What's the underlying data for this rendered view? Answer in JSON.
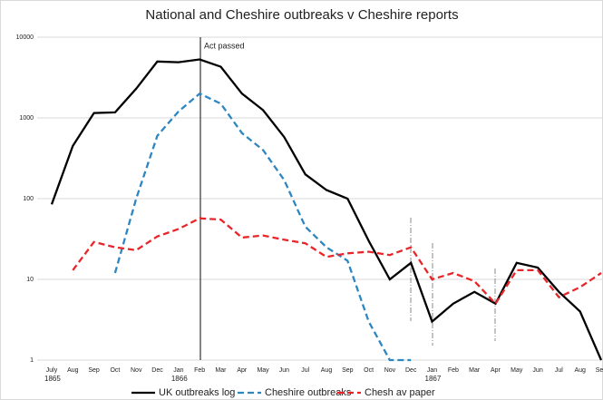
{
  "chart_data": {
    "type": "line",
    "title": "National and Cheshire outbreaks v Cheshire reports",
    "annotation": "Act passed",
    "categories": [
      "July",
      "Aug",
      "Sep",
      "Oct",
      "Nov",
      "Dec",
      "Jan",
      "Feb",
      "Mar",
      "Apr",
      "May",
      "Jun",
      "Jul",
      "Aug",
      "Sep",
      "Oct",
      "Nov",
      "Dec",
      "Jan",
      "Feb",
      "Mar",
      "Apr",
      "May",
      "Jun",
      "Jul",
      "Aug",
      "Sep"
    ],
    "years": [
      "1865",
      null,
      null,
      null,
      null,
      null,
      "1866",
      null,
      null,
      null,
      null,
      null,
      null,
      null,
      null,
      null,
      null,
      null,
      "1867",
      null,
      null,
      null,
      null,
      null,
      null,
      null,
      null
    ],
    "log_scale": true,
    "grid": true,
    "legend": "bottom",
    "ylim": [
      1,
      10000
    ],
    "yticks": [
      1,
      10,
      100,
      1000,
      10000
    ],
    "series": [
      {
        "name": "UK outbreaks log",
        "color": "#000000",
        "dash": "solid",
        "values": [
          85,
          450,
          1150,
          1170,
          2300,
          5000,
          4900,
          5300,
          4300,
          2000,
          1250,
          580,
          200,
          128,
          100,
          30,
          10,
          16,
          3,
          5,
          7,
          5,
          16,
          14,
          7,
          4,
          1
        ]
      },
      {
        "name": "Cheshire outbreaks",
        "color": "#2e86c1",
        "dash": "dashed",
        "values": [
          null,
          null,
          null,
          12,
          100,
          600,
          1200,
          2000,
          1500,
          650,
          400,
          170,
          45,
          25,
          17,
          3,
          1,
          1,
          null,
          null,
          null,
          null,
          null,
          null,
          null,
          null,
          null
        ]
      },
      {
        "name": "Chesh av paper",
        "color": "#e8262a",
        "dash": "dashed",
        "values": [
          null,
          13,
          29,
          25,
          23,
          34,
          42,
          57,
          55,
          33,
          35,
          31,
          28,
          19,
          21,
          22,
          20,
          25,
          10,
          12,
          9.5,
          5,
          13,
          13,
          6,
          8,
          12
        ]
      }
    ]
  }
}
